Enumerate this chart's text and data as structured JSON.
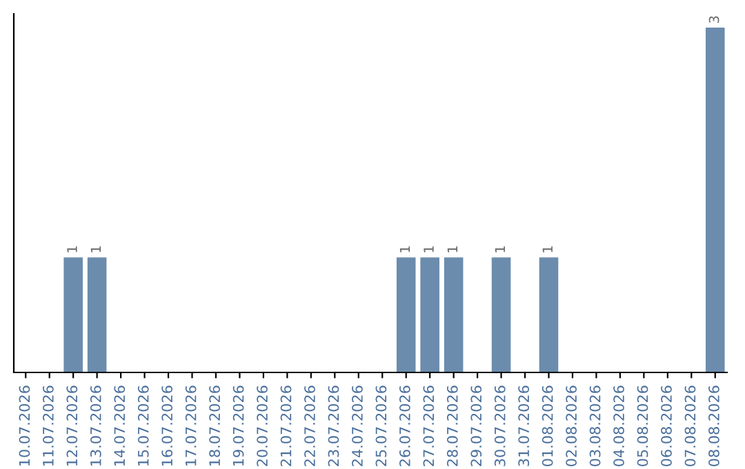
{
  "chart_data": {
    "type": "bar",
    "categories": [
      "10.07.2026",
      "11.07.2026",
      "12.07.2026",
      "13.07.2026",
      "14.07.2026",
      "15.07.2026",
      "16.07.2026",
      "17.07.2026",
      "18.07.2026",
      "19.07.2026",
      "20.07.2026",
      "21.07.2026",
      "22.07.2026",
      "23.07.2026",
      "24.07.2026",
      "25.07.2026",
      "26.07.2026",
      "27.07.2026",
      "28.07.2026",
      "29.07.2026",
      "30.07.2026",
      "31.07.2026",
      "01.08.2026",
      "02.08.2026",
      "03.08.2026",
      "04.08.2026",
      "05.08.2026",
      "06.08.2026",
      "07.08.2026",
      "08.08.2026"
    ],
    "values": [
      0,
      0,
      1,
      1,
      0,
      0,
      0,
      0,
      0,
      0,
      0,
      0,
      0,
      0,
      0,
      0,
      1,
      1,
      1,
      0,
      1,
      0,
      1,
      0,
      0,
      0,
      0,
      0,
      0,
      3
    ],
    "value_labels": [
      null,
      null,
      "1",
      "1",
      null,
      null,
      null,
      null,
      null,
      null,
      null,
      null,
      null,
      null,
      null,
      null,
      "1",
      "1",
      "1",
      null,
      "1",
      null,
      "1",
      null,
      null,
      null,
      null,
      null,
      null,
      "3"
    ],
    "color": "#6b8cad",
    "ylim": [
      0,
      3.12
    ],
    "tick_labels": "x",
    "grid": false,
    "legend": false
  }
}
